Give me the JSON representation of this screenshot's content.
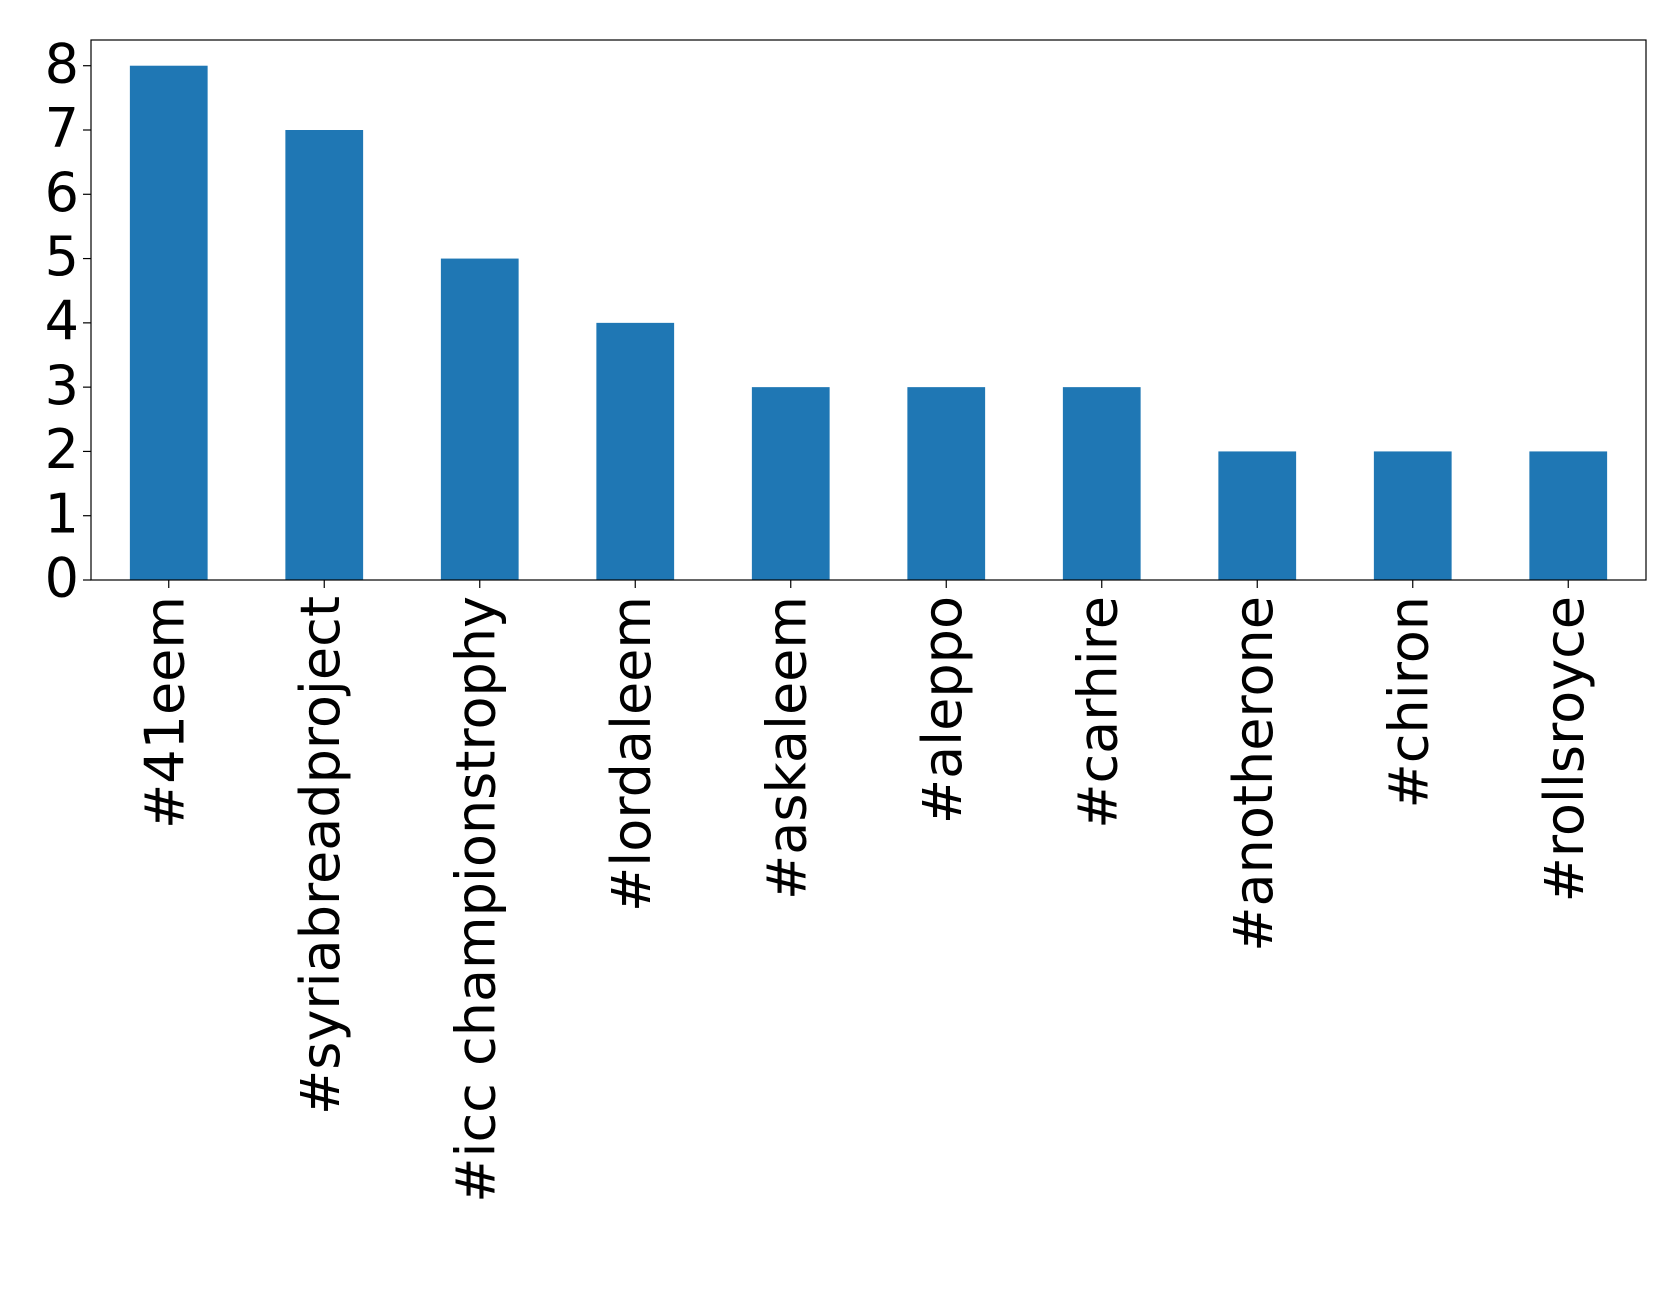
{
  "chart_data": {
    "type": "bar",
    "categories": [
      "#41eem",
      "#syriabreadproject",
      "#icc championstrophy",
      "#lordaleem",
      "#askaleem",
      "#aleppo",
      "#carhire",
      "#anotherone",
      "#chiron",
      "#rollsroyce"
    ],
    "values": [
      8,
      7,
      5,
      4,
      3,
      3,
      3,
      2,
      2,
      2
    ],
    "color": "#1f77b4",
    "ylim": [
      0,
      8.4
    ],
    "yticks": [
      0,
      1,
      2,
      3,
      4,
      5,
      6,
      7,
      8
    ],
    "grid": false
  }
}
